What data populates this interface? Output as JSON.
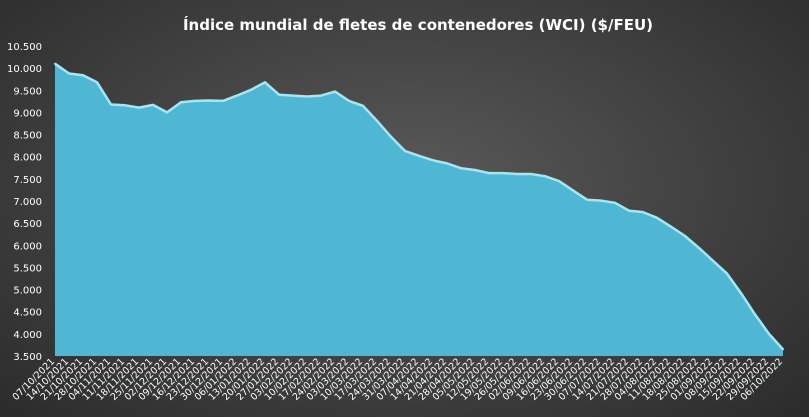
{
  "chart_data": {
    "type": "area",
    "title": "Índice mundial de fletes de contenedores (WCI) ($/FEU)",
    "xlabel": "",
    "ylabel": "",
    "ylim": [
      3500,
      10500
    ],
    "yticks": [
      3500,
      4000,
      4500,
      5000,
      5500,
      6000,
      6500,
      7000,
      7500,
      8000,
      8500,
      9000,
      9500,
      10000,
      10500
    ],
    "ytick_labels": [
      "3.500",
      "4.000",
      "4.500",
      "5.000",
      "5.500",
      "6.000",
      "6.500",
      "7.000",
      "7.500",
      "8.000",
      "8.500",
      "9.000",
      "9.500",
      "10.000",
      "10.500"
    ],
    "grid": false,
    "legend": "none",
    "colors": {
      "fill": "#4fb7d3",
      "line": "#9ee8f7"
    },
    "categories": [
      "07/10/2021",
      "14/10/2021",
      "21/10/2021",
      "28/10/2021",
      "04/11/2021",
      "11/11/2021",
      "18/11/2021",
      "25/11/2021",
      "02/12/2021",
      "09/12/2021",
      "16/12/2021",
      "23/12/2021",
      "30/12/2021",
      "06/01/2022",
      "13/01/2022",
      "20/01/2022",
      "27/01/2022",
      "03/02/2022",
      "10/02/2022",
      "17/02/2022",
      "24/02/2022",
      "03/03/2022",
      "10/03/2022",
      "17/03/2022",
      "24/03/2022",
      "31/03/2022",
      "07/04/2022",
      "14/04/2022",
      "21/04/2022",
      "28/04/2022",
      "05/05/2022",
      "12/05/2022",
      "19/05/2022",
      "26/05/2022",
      "02/06/2022",
      "09/06/2022",
      "16/06/2022",
      "23/06/2022",
      "30/06/2022",
      "07/07/2022",
      "14/07/2022",
      "21/07/2022",
      "28/07/2022",
      "04/08/2022",
      "11/08/2022",
      "18/08/2022",
      "25/08/2022",
      "01/09/2022",
      "08/09/2022",
      "15/09/2022",
      "22/09/2022",
      "29/09/2022",
      "06/10/2022"
    ],
    "x_tick_labels": [
      "07/10/2021",
      "14/10/2021",
      "21/10/2021",
      "28/10/2021",
      "04/11/2021",
      "11/11/2021",
      "18/11/2021",
      "25/11/2021",
      "02/12/2021",
      "09/12/2021",
      "16/12/2021",
      "23/12/2021",
      "30/12/2021",
      "06/01/2022",
      "13/01/2022",
      "20/01/2022",
      "27/01/2022",
      "03/02/2022",
      "10/02/2022",
      "17/02/2022",
      "24/02/2022",
      "03/03/2022",
      "10/03/2022",
      "17/03/2022",
      "24/03/2022",
      "31/03/2022",
      "07/04/2022",
      "14/04/2022",
      "21/04/2022",
      "28/04/2022",
      "05/05/2022",
      "12/05/2022",
      "19/05/2022",
      "26/05/2022",
      "02/06/2022",
      "09/06/2022",
      "16/06/2022",
      "23/06/2022",
      "30/06/2022",
      "07/07/2022",
      "14/07/2022",
      "21/07/2022",
      "28/07/2022",
      "04/08/2022",
      "11/08/2022",
      "18/08/2022",
      "25/08/2022",
      "01/09/2022",
      "08/09/2022",
      "15/09/2022",
      "22/09/2022",
      "29/09/2022",
      "06/10/2022"
    ],
    "values": [
      10100,
      9880,
      9840,
      9680,
      9180,
      9160,
      9110,
      9170,
      9000,
      9230,
      9260,
      9270,
      9260,
      9380,
      9510,
      9680,
      9400,
      9380,
      9360,
      9380,
      9470,
      9260,
      9150,
      8810,
      8450,
      8130,
      8020,
      7920,
      7850,
      7740,
      7700,
      7630,
      7630,
      7610,
      7610,
      7560,
      7450,
      7240,
      7030,
      7010,
      6960,
      6780,
      6750,
      6620,
      6420,
      6210,
      5940,
      5650,
      5360,
      4920,
      4440,
      4000,
      3650
    ]
  }
}
